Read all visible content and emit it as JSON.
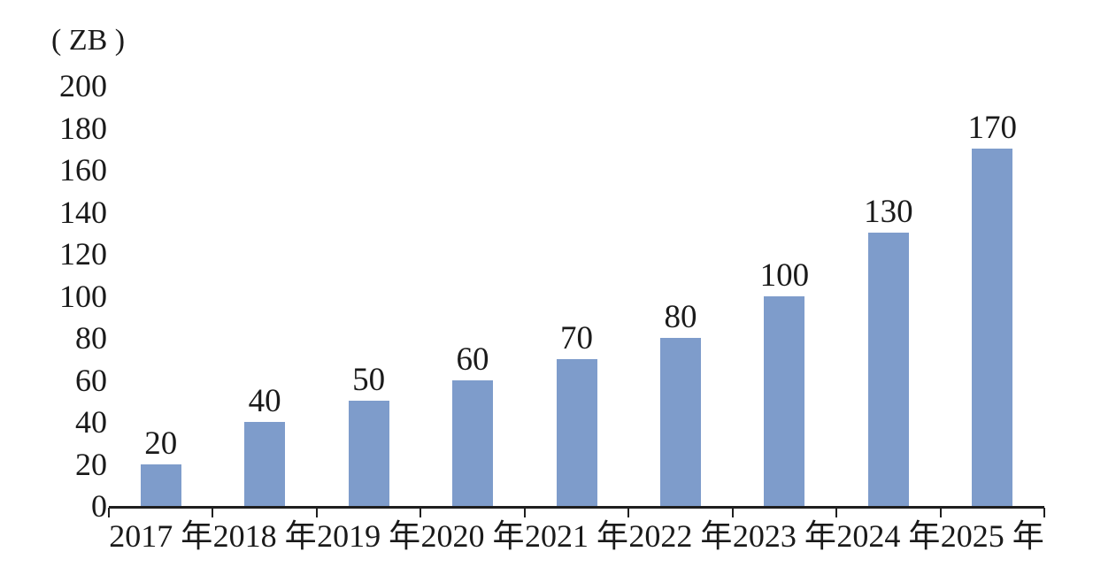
{
  "chart_data": {
    "type": "bar",
    "title": "",
    "unit_label": "( ZB )",
    "categories": [
      "2017 年",
      "2018 年",
      "2019 年",
      "2020 年",
      "2021 年",
      "2022 年",
      "2023 年",
      "2024 年",
      "2025 年"
    ],
    "values": [
      20,
      40,
      50,
      60,
      70,
      80,
      100,
      130,
      170
    ],
    "data_labels": [
      "20",
      "40",
      "50",
      "60",
      "70",
      "80",
      "100",
      "130",
      "170"
    ],
    "y_ticks": [
      0,
      20,
      40,
      60,
      80,
      100,
      120,
      140,
      160,
      180,
      200
    ],
    "ylim": [
      0,
      200
    ],
    "xlabel": "",
    "ylabel": "ZB",
    "grid": "off",
    "legend": "none",
    "colors": {
      "bar": "#7E9CCB",
      "axis": "#1F1F1F",
      "text": "#1A1A1A",
      "background": "#FFFFFF"
    }
  }
}
